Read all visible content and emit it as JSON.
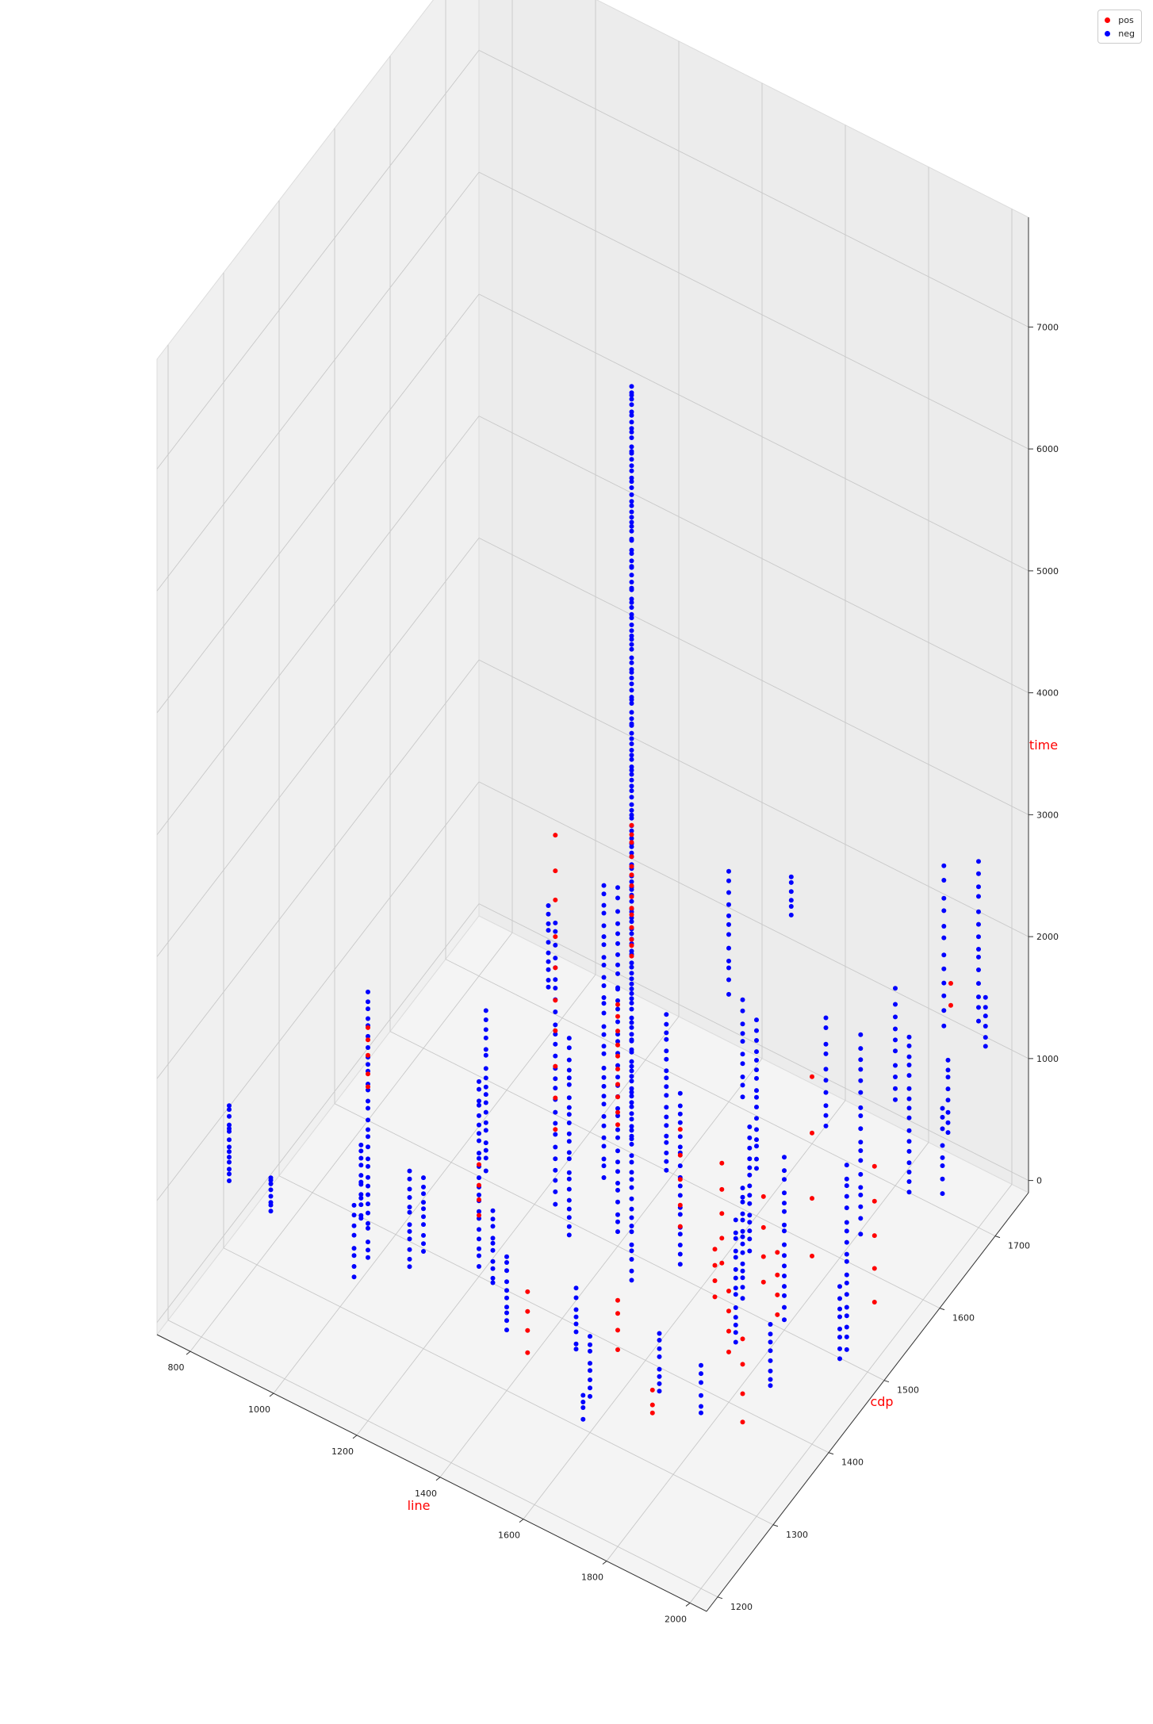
{
  "chart_data": {
    "type": "scatter",
    "projection": "3d",
    "title": "",
    "xlabel": "line",
    "ylabel": "cdp",
    "zlabel": "time",
    "axis_label_color": "#ff0000",
    "xlim": [
      720,
      2040
    ],
    "ylim": [
      1180,
      1760
    ],
    "zlim": [
      -100,
      7900
    ],
    "xticks": [
      "800",
      "1000",
      "1200",
      "1400",
      "1600",
      "1800",
      "2000"
    ],
    "yticks": [
      "1200",
      "1300",
      "1400",
      "1500",
      "1600",
      "1700"
    ],
    "zticks": [
      "0",
      "1000",
      "2000",
      "3000",
      "4000",
      "5000",
      "6000",
      "7000"
    ],
    "grid": true,
    "legend_position": "top-right",
    "series": [
      {
        "name": "pos",
        "color": "#ff0000",
        "marker_size": 3,
        "columns": [
          [
            1300,
            1600,
            1500,
            2600,
            14
          ],
          [
            1250,
            1500,
            600,
            3000,
            10
          ],
          [
            1400,
            1500,
            900,
            1900,
            10
          ],
          [
            1550,
            1500,
            300,
            1100,
            5
          ],
          [
            1650,
            1500,
            200,
            1000,
            5
          ],
          [
            1700,
            1450,
            300,
            700,
            4
          ],
          [
            1750,
            1500,
            200,
            900,
            4
          ],
          [
            1800,
            1400,
            300,
            800,
            4
          ],
          [
            1850,
            1450,
            400,
            900,
            4
          ],
          [
            1950,
            1550,
            100,
            1200,
            5
          ],
          [
            1000,
            1350,
            1400,
            1900,
            5
          ],
          [
            1200,
            1400,
            400,
            800,
            4
          ],
          [
            1450,
            1300,
            300,
            800,
            4
          ],
          [
            1600,
            1350,
            300,
            700,
            4
          ],
          [
            1750,
            1300,
            300,
            500,
            3
          ],
          [
            1900,
            1350,
            200,
            900,
            4
          ],
          [
            1800,
            1550,
            200,
            1700,
            4
          ],
          [
            2000,
            1650,
            2000,
            2200,
            2
          ]
        ]
      },
      {
        "name": "neg",
        "color": "#0000ff",
        "marker_size": 3,
        "columns": [
          [
            1300,
            1600,
            0,
            6200,
            140
          ],
          [
            800,
            1250,
            900,
            1500,
            14
          ],
          [
            900,
            1250,
            800,
            1100,
            8
          ],
          [
            1000,
            1350,
            0,
            2200,
            30
          ],
          [
            1050,
            1300,
            700,
            1300,
            12
          ],
          [
            1100,
            1350,
            100,
            900,
            12
          ],
          [
            1150,
            1450,
            400,
            1700,
            18
          ],
          [
            1200,
            1400,
            0,
            1500,
            22
          ],
          [
            1250,
            1500,
            0,
            2300,
            26
          ],
          [
            1300,
            1550,
            0,
            2400,
            30
          ],
          [
            1350,
            1450,
            200,
            1800,
            22
          ],
          [
            1400,
            1500,
            0,
            2000,
            24
          ],
          [
            1450,
            1550,
            300,
            1600,
            18
          ],
          [
            1500,
            1450,
            100,
            1200,
            16
          ],
          [
            1550,
            1500,
            0,
            1400,
            18
          ],
          [
            1600,
            1600,
            300,
            1500,
            16
          ],
          [
            1650,
            1550,
            0,
            1000,
            14
          ],
          [
            1700,
            1500,
            0,
            900,
            14
          ],
          [
            1750,
            1450,
            0,
            1000,
            14
          ],
          [
            1800,
            1500,
            0,
            1300,
            16
          ],
          [
            1850,
            1600,
            200,
            1800,
            18
          ],
          [
            1900,
            1650,
            300,
            1600,
            16
          ],
          [
            1950,
            1500,
            0,
            1500,
            18
          ],
          [
            2000,
            1700,
            1600,
            2900,
            14
          ],
          [
            1100,
            1600,
            900,
            1600,
            10
          ],
          [
            1200,
            1650,
            800,
            1600,
            10
          ],
          [
            1400,
            1700,
            800,
            1800,
            12
          ],
          [
            1500,
            1650,
            400,
            1200,
            10
          ],
          [
            1700,
            1650,
            500,
            1400,
            10
          ],
          [
            1800,
            1700,
            600,
            1500,
            10
          ],
          [
            1900,
            1720,
            400,
            1000,
            8
          ],
          [
            1100,
            1250,
            600,
            1200,
            8
          ],
          [
            1200,
            1300,
            700,
            1300,
            10
          ],
          [
            1300,
            1350,
            300,
            900,
            10
          ],
          [
            1400,
            1300,
            400,
            1000,
            10
          ],
          [
            1500,
            1350,
            100,
            600,
            8
          ],
          [
            1600,
            1300,
            200,
            700,
            8
          ],
          [
            1700,
            1350,
            100,
            600,
            8
          ],
          [
            1800,
            1350,
            100,
            500,
            6
          ],
          [
            1900,
            1400,
            200,
            700,
            8
          ],
          [
            2000,
            1450,
            300,
            900,
            8
          ],
          [
            1550,
            1700,
            1700,
            2000,
            6
          ],
          [
            1850,
            1750,
            1000,
            2300,
            12
          ],
          [
            1950,
            1750,
            1000,
            1400,
            6
          ],
          [
            2020,
            1620,
            700,
            1400,
            8
          ],
          [
            1650,
            1250,
            400,
            600,
            4
          ]
        ]
      }
    ]
  }
}
